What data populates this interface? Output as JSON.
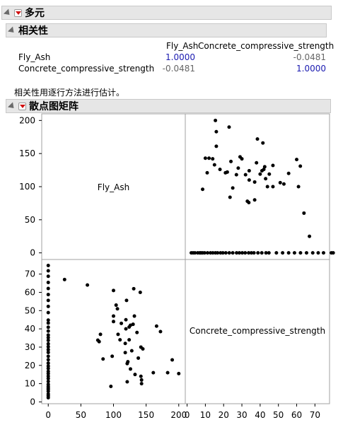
{
  "outline": {
    "multivariate_title": "多元",
    "correlation_title": "相关性",
    "scatter_title": "散点图矩阵",
    "note": "相关性用逐行方法进行估计。"
  },
  "corr_table": {
    "col_headers": [
      "Fly_Ash",
      "Concrete_compressive_strength"
    ],
    "rows": [
      {
        "label": "Fly_Ash",
        "values": [
          "1.0000",
          "-0.0481"
        ]
      },
      {
        "label": "Concrete_compressive_strength",
        "values": [
          "-0.0481",
          "1.0000"
        ]
      }
    ]
  },
  "colors": {
    "diag": "#1a1ab0",
    "offdiag": "#666666",
    "header_bg": "#e6e6e6",
    "menu_red": "#d01010"
  },
  "icons": [
    "disclosure-triangle-icon",
    "red-triangle-menu-icon"
  ],
  "chart_data": {
    "type": "scatter",
    "variables": [
      "Fly_Ash",
      "Concrete_compressive_strength"
    ],
    "diag_labels": [
      "Fly_Ash",
      "Concrete_compressive_strength"
    ],
    "fly_ash_axis": {
      "range": [
        -10,
        210
      ],
      "ticks": [
        0,
        50,
        100,
        150,
        200
      ]
    },
    "strength_axis": {
      "range": [
        -1,
        78
      ],
      "ticks": [
        0,
        10,
        20,
        30,
        40,
        50,
        60,
        70
      ]
    },
    "points": [
      [
        0,
        2.3
      ],
      [
        0,
        3.3
      ],
      [
        0,
        4.3
      ],
      [
        0,
        5.8
      ],
      [
        0,
        6.9
      ],
      [
        0,
        7.6
      ],
      [
        0,
        8.5
      ],
      [
        0,
        9.6
      ],
      [
        0,
        11.2
      ],
      [
        0,
        12.8
      ],
      [
        0,
        14.1
      ],
      [
        0,
        15.5
      ],
      [
        0,
        16.7
      ],
      [
        0,
        18.3
      ],
      [
        0,
        19.6
      ],
      [
        0,
        21.2
      ],
      [
        0,
        23.1
      ],
      [
        0,
        25
      ],
      [
        0,
        27.1
      ],
      [
        0,
        28.6
      ],
      [
        0,
        30.2
      ],
      [
        0,
        31.8
      ],
      [
        0,
        33.7
      ],
      [
        0,
        35.2
      ],
      [
        0,
        36.6
      ],
      [
        0,
        38.8
      ],
      [
        0,
        40.9
      ],
      [
        0,
        43.2
      ],
      [
        0,
        44.8
      ],
      [
        0,
        48.9
      ],
      [
        0,
        52.3
      ],
      [
        0,
        55.6
      ],
      [
        0,
        58.8
      ],
      [
        0,
        62.1
      ],
      [
        0,
        65.4
      ],
      [
        0,
        68.8
      ],
      [
        0,
        71.8
      ],
      [
        0,
        74.7
      ],
      [
        0,
        79
      ],
      [
        0,
        80
      ],
      [
        96,
        8.5
      ],
      [
        98,
        25
      ],
      [
        100,
        44
      ],
      [
        100,
        47
      ],
      [
        100,
        61
      ],
      [
        104,
        53
      ],
      [
        106,
        51
      ],
      [
        107,
        37
      ],
      [
        110,
        34
      ],
      [
        112,
        43
      ],
      [
        118,
        32
      ],
      [
        118,
        27
      ],
      [
        119,
        40
      ],
      [
        119,
        45
      ],
      [
        121,
        11
      ],
      [
        121,
        21
      ],
      [
        122,
        22
      ],
      [
        124,
        34
      ],
      [
        124,
        41
      ],
      [
        126,
        18
      ],
      [
        126,
        42
      ],
      [
        128,
        28
      ],
      [
        130,
        42.5
      ],
      [
        131,
        62
      ],
      [
        132,
        47
      ],
      [
        133,
        15
      ],
      [
        136,
        38
      ],
      [
        138,
        24
      ],
      [
        141,
        60
      ],
      [
        142,
        30
      ],
      [
        142,
        14
      ],
      [
        143,
        12
      ],
      [
        143,
        10
      ],
      [
        145,
        29
      ],
      [
        161,
        16
      ],
      [
        166,
        41.5
      ],
      [
        172,
        38.5
      ],
      [
        183,
        16
      ],
      [
        190,
        23
      ],
      [
        200,
        15.5
      ],
      [
        25,
        67
      ],
      [
        60,
        64
      ],
      [
        76,
        33.8
      ],
      [
        78,
        33
      ],
      [
        80,
        37
      ],
      [
        84,
        23.5
      ],
      [
        120,
        55.6
      ]
    ]
  }
}
